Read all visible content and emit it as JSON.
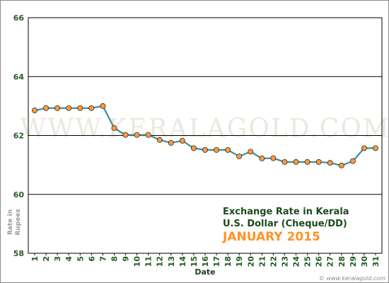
{
  "chart_data": {
    "type": "line",
    "x": [
      1,
      2,
      3,
      4,
      5,
      6,
      7,
      8,
      9,
      10,
      11,
      12,
      13,
      14,
      15,
      16,
      17,
      18,
      19,
      20,
      21,
      22,
      23,
      24,
      25,
      26,
      27,
      28,
      29,
      30,
      31
    ],
    "series": [
      {
        "values": [
          62.85,
          62.93,
          62.93,
          62.93,
          62.93,
          62.93,
          63.0,
          62.25,
          62.02,
          62.02,
          62.02,
          61.85,
          61.75,
          61.82,
          61.57,
          61.51,
          61.51,
          61.51,
          61.29,
          61.45,
          61.22,
          61.23,
          61.1,
          61.1,
          61.1,
          61.1,
          61.07,
          60.98,
          61.13,
          61.57,
          61.57
        ]
      }
    ],
    "ylim": [
      58,
      66
    ],
    "yticks": [
      "58",
      "60",
      "62",
      "64",
      "66"
    ],
    "xlabel": "Date",
    "ylabel": "Rate in Rupees",
    "grid": true,
    "watermark": "WWW.KERALAGOLD.COM",
    "credit": "© www.keralagold.com",
    "annotations": [
      "Exchange Rate in Kerala",
      "U.S. Dollar (Cheque/DD)",
      "JANUARY 2015"
    ],
    "colors": {
      "line": "#3a8f9e",
      "marker_fill": "#ff9a3c",
      "marker_edge": "#1a1a1a",
      "grid": "#000000",
      "annotation_accent": "#ff9326"
    }
  }
}
